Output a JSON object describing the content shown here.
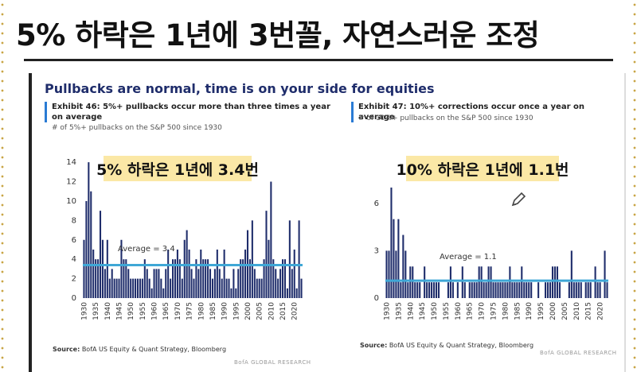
{
  "headline": "5% 하락은 1년에 3번꼴, 자연스러운 조정",
  "slide": {
    "title": "Pullbacks are normal, time is on your side for equities",
    "left": {
      "exhibit": "Exhibit 46: 5%+ pullbacks occur more than three times a year on average",
      "sub": "# of 5%+ pullbacks on the S&P 500 since 1930",
      "source_label": "Source:",
      "source_text": "BofA US Equity & Quant Strategy, Bloomberg"
    },
    "right": {
      "exhibit": "Exhibit 47: 10%+ corrections occur once a year on average",
      "sub": "# of 10%+ pullbacks on the S&P 500 since 1930",
      "source_label": "Source:",
      "source_text": "BofA US Equity & Quant Strategy, Bloomberg"
    },
    "footer": "BofA GLOBAL RESEARCH"
  },
  "colors": {
    "bar": "#1f2d6b",
    "avg_line": "#3fa7d6",
    "highlight": "#fbe8a6",
    "accent": "#2a7bd4"
  },
  "chart_data": [
    {
      "type": "bar",
      "title": "",
      "annotation": "5% 하락은 1년에 3.4번",
      "avg_label": "Average = 3.4",
      "average": 3.4,
      "x": [
        1930,
        1931,
        1932,
        1933,
        1934,
        1935,
        1936,
        1937,
        1938,
        1939,
        1940,
        1941,
        1942,
        1943,
        1944,
        1945,
        1946,
        1947,
        1948,
        1949,
        1950,
        1951,
        1952,
        1953,
        1954,
        1955,
        1956,
        1957,
        1958,
        1959,
        1960,
        1961,
        1962,
        1963,
        1964,
        1965,
        1966,
        1967,
        1968,
        1969,
        1970,
        1971,
        1972,
        1973,
        1974,
        1975,
        1976,
        1977,
        1978,
        1979,
        1980,
        1981,
        1982,
        1983,
        1984,
        1985,
        1986,
        1987,
        1988,
        1989,
        1990,
        1991,
        1992,
        1993,
        1994,
        1995,
        1996,
        1997,
        1998,
        1999,
        2000,
        2001,
        2002,
        2003,
        2004,
        2005,
        2006,
        2007,
        2008,
        2009,
        2010,
        2011,
        2012,
        2013,
        2014,
        2015,
        2016,
        2017,
        2018,
        2019,
        2020,
        2021,
        2022,
        2023
      ],
      "values": [
        6,
        10,
        14,
        11,
        5,
        4,
        4,
        9,
        6,
        3,
        6,
        2,
        3,
        2,
        2,
        2,
        6,
        4,
        4,
        3,
        2,
        2,
        2,
        2,
        2,
        2,
        4,
        3,
        2,
        1,
        3,
        3,
        3,
        2,
        1,
        3,
        5,
        2,
        4,
        4,
        5,
        4,
        2,
        6,
        7,
        5,
        3,
        2,
        4,
        3,
        5,
        4,
        4,
        4,
        3,
        2,
        3,
        5,
        3,
        2,
        5,
        2,
        2,
        1,
        3,
        1,
        3,
        4,
        4,
        5,
        7,
        4,
        8,
        3,
        2,
        2,
        2,
        4,
        9,
        6,
        12,
        4,
        3,
        2,
        3,
        4,
        4,
        1,
        8,
        3,
        5,
        1,
        8,
        2
      ],
      "xticks": [
        "1930",
        "1935",
        "1940",
        "1945",
        "1950",
        "1955",
        "1960",
        "1965",
        "1970",
        "1975",
        "1980",
        "1985",
        "1990",
        "1995",
        "2000",
        "2005",
        "2010",
        "2015",
        "2020"
      ],
      "yticks": [
        "0",
        "2",
        "4",
        "6",
        "8",
        "10",
        "12",
        "14"
      ],
      "ylim": [
        0,
        14.5
      ]
    },
    {
      "type": "bar",
      "title": "",
      "annotation": "10% 하락은 1년에 1.1번",
      "avg_label": "Average = 1.1",
      "average": 1.1,
      "x": [
        1930,
        1931,
        1932,
        1933,
        1934,
        1935,
        1936,
        1937,
        1938,
        1939,
        1940,
        1941,
        1942,
        1943,
        1944,
        1945,
        1946,
        1947,
        1948,
        1949,
        1950,
        1951,
        1952,
        1953,
        1954,
        1955,
        1956,
        1957,
        1958,
        1959,
        1960,
        1961,
        1962,
        1963,
        1964,
        1965,
        1966,
        1967,
        1968,
        1969,
        1970,
        1971,
        1972,
        1973,
        1974,
        1975,
        1976,
        1977,
        1978,
        1979,
        1980,
        1981,
        1982,
        1983,
        1984,
        1985,
        1986,
        1987,
        1988,
        1989,
        1990,
        1991,
        1992,
        1993,
        1994,
        1995,
        1996,
        1997,
        1998,
        1999,
        2000,
        2001,
        2002,
        2003,
        2004,
        2005,
        2006,
        2007,
        2008,
        2009,
        2010,
        2011,
        2012,
        2013,
        2014,
        2015,
        2016,
        2017,
        2018,
        2019,
        2020,
        2021,
        2022,
        2023
      ],
      "values": [
        3,
        3,
        7,
        5,
        3,
        5,
        1,
        4,
        3,
        1,
        2,
        2,
        1,
        1,
        1,
        0,
        2,
        1,
        1,
        1,
        1,
        1,
        1,
        0,
        0,
        0,
        1,
        2,
        1,
        0,
        1,
        0,
        2,
        1,
        0,
        1,
        1,
        1,
        1,
        2,
        2,
        1,
        1,
        2,
        2,
        1,
        1,
        1,
        1,
        1,
        1,
        1,
        2,
        1,
        1,
        1,
        1,
        2,
        1,
        1,
        1,
        1,
        0,
        0,
        1,
        0,
        0,
        1,
        1,
        1,
        2,
        2,
        2,
        1,
        0,
        0,
        0,
        1,
        3,
        1,
        1,
        1,
        1,
        0,
        1,
        1,
        1,
        0,
        2,
        1,
        1,
        0,
        3,
        1
      ],
      "xticks": [
        "1930",
        "1935",
        "1940",
        "1945",
        "1950",
        "1955",
        "1960",
        "1965",
        "1970",
        "1975",
        "1980",
        "1985",
        "1990",
        "1995",
        "2000",
        "2005",
        "2010",
        "2015",
        "2020"
      ],
      "yticks": [
        "0",
        "3",
        "6"
      ],
      "ylim": [
        0,
        7.4
      ]
    }
  ]
}
